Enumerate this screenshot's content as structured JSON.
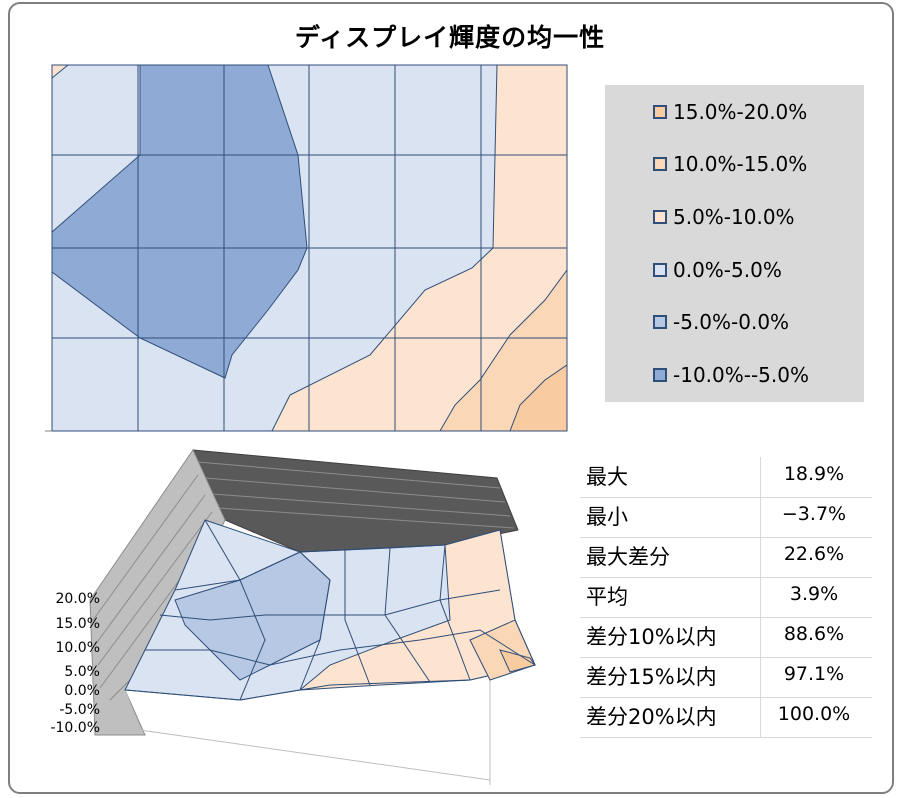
{
  "chart_data": [
    {
      "type": "contour",
      "title": "ディスプレイ輝度の均一性",
      "legend": {
        "position": "right",
        "entries": [
          {
            "label": "15.0%-20.0%",
            "color": "#f8cba0"
          },
          {
            "label": "10.0%-15.0%",
            "color": "#fad7b7"
          },
          {
            "label": "5.0%-10.0%",
            "color": "#fce4d1"
          },
          {
            "label": "0.0%-5.0%",
            "color": "#dae3f2"
          },
          {
            "label": "-5.0%-0.0%",
            "color": "#b6c8e3"
          },
          {
            "label": "-10.0%--5.0%",
            "color": "#8fabd5"
          }
        ]
      },
      "grid": true
    },
    {
      "type": "surface",
      "zlabels": [
        "20.0%",
        "15.0%",
        "10.0%",
        "5.0%",
        "0.0%",
        "-5.0%",
        "-10.0%"
      ],
      "zlim": [
        -10.0,
        20.0
      ]
    }
  ],
  "stats": [
    {
      "label": "最大",
      "value": "18.9%"
    },
    {
      "label": "最小",
      "value": "−3.7%"
    },
    {
      "label": "最大差分",
      "value": "22.6%"
    },
    {
      "label": "平均",
      "value": "3.9%"
    },
    {
      "label": "差分10%以内",
      "value": "88.6%"
    },
    {
      "label": "差分15%以内",
      "value": "97.1%"
    },
    {
      "label": "差分20%以内",
      "value": "100.0%"
    }
  ]
}
